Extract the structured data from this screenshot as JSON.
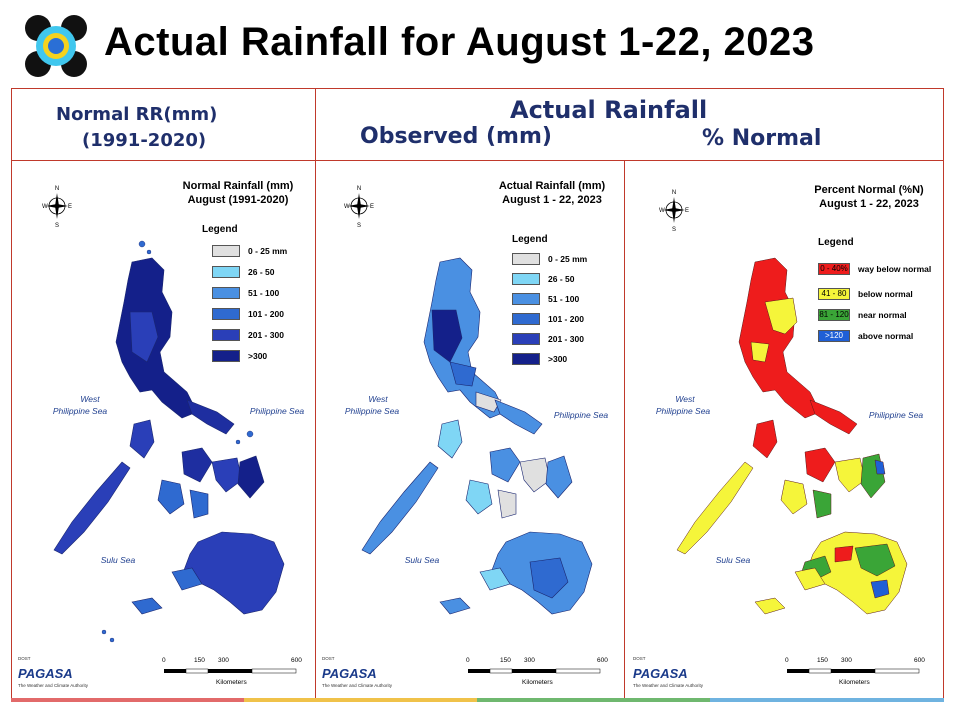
{
  "slide_title": "Actual Rainfall for August 1-22, 2023",
  "header": {
    "normal_line1": "Normal RR(mm)",
    "normal_line2": "(1991-2020)",
    "actual_title": "Actual Rainfall",
    "observed": "Observed (mm)",
    "percent_normal": "% Normal"
  },
  "panels": [
    {
      "title_line1": "Normal Rainfall (mm)",
      "title_line2": "August (1991-2020)",
      "legend_title": "Legend",
      "legend": [
        {
          "label": "0 - 25 mm",
          "color": "#e0e0e0"
        },
        {
          "label": "26 - 50",
          "color": "#7fd6f5"
        },
        {
          "label": "51 - 100",
          "color": "#4a90e2"
        },
        {
          "label": "101 - 200",
          "color": "#2f6ad0"
        },
        {
          "label": "201 - 300",
          "color": "#2a3fb8"
        },
        {
          "label": ">300",
          "color": "#14208a"
        }
      ],
      "sea_west_1": "West",
      "sea_west_2": "Philippine Sea",
      "sea_east": "Philippine Sea",
      "sea_south": "Sulu Sea"
    },
    {
      "title_line1": "Actual Rainfall (mm)",
      "title_line2": "August 1 - 22, 2023",
      "legend_title": "Legend",
      "legend": [
        {
          "label": "0 - 25 mm",
          "color": "#e0e0e0"
        },
        {
          "label": "26 - 50",
          "color": "#7fd6f5"
        },
        {
          "label": "51 - 100",
          "color": "#4a90e2"
        },
        {
          "label": "101 - 200",
          "color": "#2f6ad0"
        },
        {
          "label": "201 - 300",
          "color": "#2a3fb8"
        },
        {
          "label": ">300",
          "color": "#14208a"
        }
      ],
      "sea_west_1": "West",
      "sea_west_2": "Philippine Sea",
      "sea_east": "Philippine Sea",
      "sea_south": "Sulu Sea"
    },
    {
      "title_line1": "Percent Normal (%N)",
      "title_line2": "August 1 - 22, 2023",
      "legend_title": "Legend",
      "legend": [
        {
          "swatch": "0 - 40%",
          "label": "way below normal",
          "color": "#ee1c1c"
        },
        {
          "swatch": "41 - 80",
          "label": "below normal",
          "color": "#f5f53a"
        },
        {
          "swatch": "81 - 120",
          "label": "near normal",
          "color": "#3aa537"
        },
        {
          "swatch": ">120",
          "label": "above normal",
          "color": "#1f5fd6"
        }
      ],
      "sea_west_1": "West",
      "sea_west_2": "Philippine Sea",
      "sea_east": "Philippine Sea",
      "sea_south": "Sulu Sea"
    }
  ],
  "scale": {
    "t0": "0",
    "t1": "150",
    "t2": "300",
    "t3": "600",
    "unit": "Kilometers"
  },
  "compass": {
    "n": "N",
    "s": "S",
    "e": "E",
    "w": "W"
  },
  "pagasa": {
    "top": "DOST",
    "name": "PAGASA",
    "tagline": "The Weather and Climate Authority"
  },
  "stripe_colors": [
    "#e26a6a",
    "#f0c24a",
    "#6fb86f",
    "#6fb3e0"
  ]
}
